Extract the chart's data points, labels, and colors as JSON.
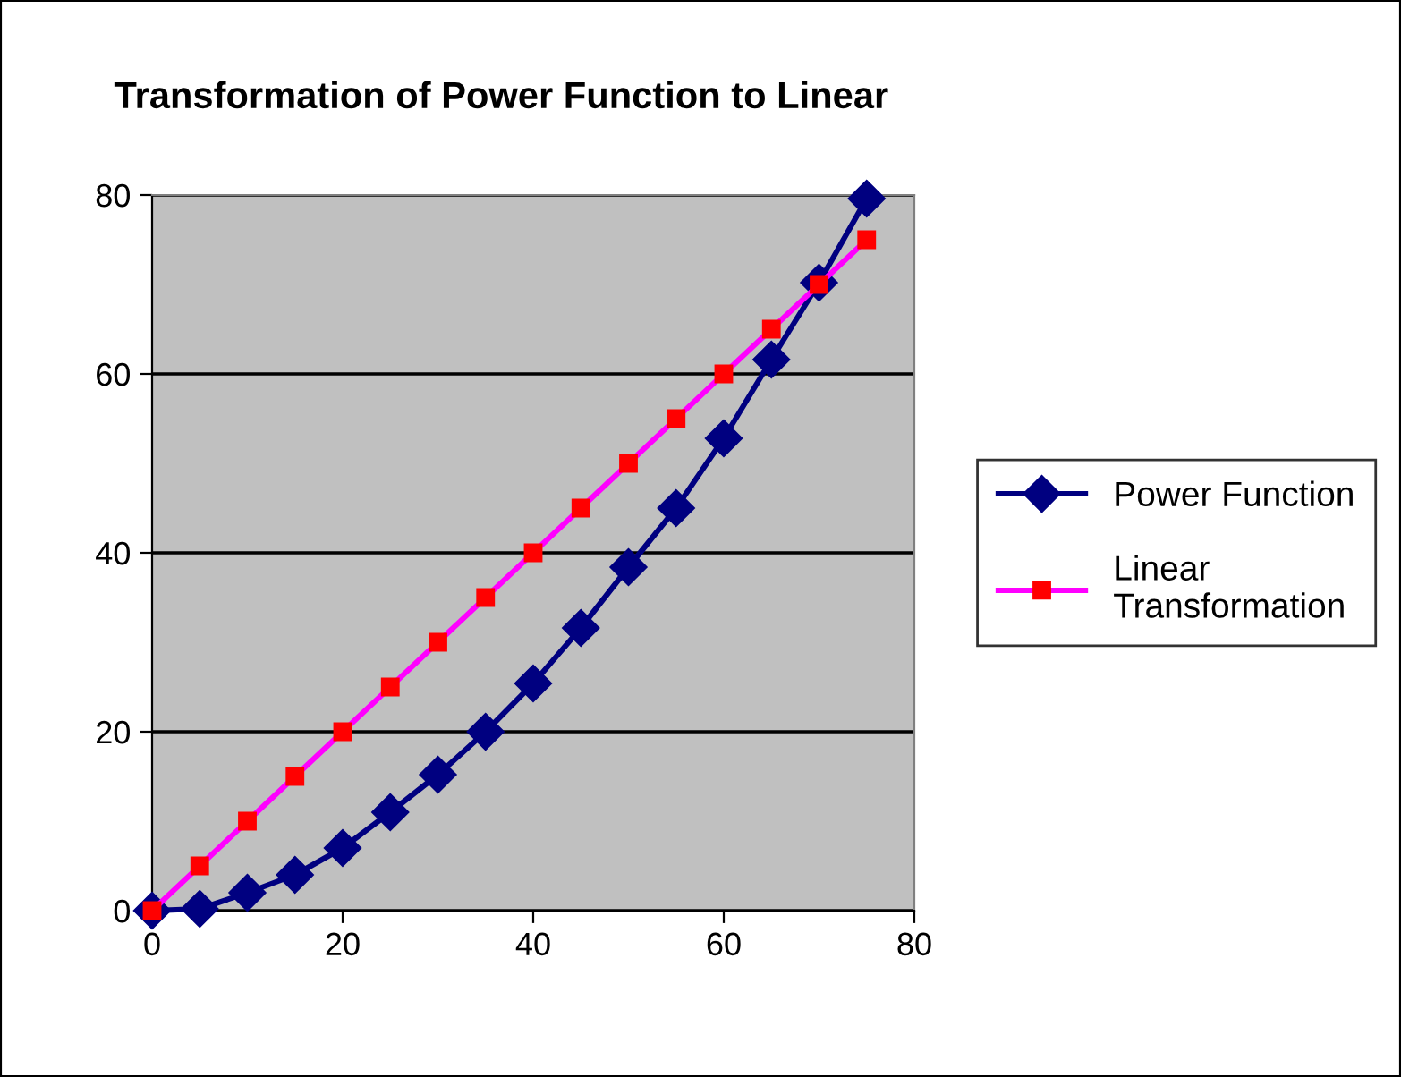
{
  "chart_data": {
    "type": "line",
    "title": "Transformation of Power Function to Linear",
    "x": [
      0,
      5,
      10,
      15,
      20,
      25,
      30,
      35,
      40,
      45,
      50,
      55,
      60,
      65,
      70,
      75
    ],
    "series": [
      {
        "name": "Power Function",
        "color": "#000080",
        "marker": "diamond",
        "values": [
          0,
          0.2,
          2,
          4,
          7,
          11,
          15.2,
          20,
          25.4,
          31.6,
          38.4,
          45,
          52.8,
          61.6,
          70.2,
          79.6
        ]
      },
      {
        "name": "Linear\nTransformation",
        "color": "#ff00ff",
        "marker": "square",
        "values": [
          0,
          5,
          10,
          15,
          20,
          25,
          30,
          35,
          40,
          45,
          50,
          55,
          60,
          65,
          70,
          75
        ]
      }
    ],
    "xlim": [
      0,
      80
    ],
    "xticks": [
      0,
      20,
      40,
      60,
      80
    ],
    "ylim": [
      0,
      80
    ],
    "yticks": [
      0,
      20,
      40,
      60,
      80
    ],
    "grid": "y",
    "legend": "right"
  }
}
